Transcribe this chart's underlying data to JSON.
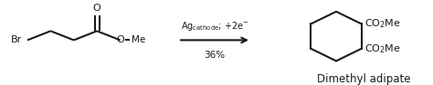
{
  "fig_width": 4.74,
  "fig_height": 0.94,
  "dpi": 100,
  "bg_color": "#ffffff",
  "arrow_above_text": "Ag$_{\\mathregular{cathode}}$; +2e$^{-}$",
  "arrow_below_text": "36%",
  "product_label": "Dimethyl adipate",
  "line_color": "#1a1a1a",
  "line_width": 1.5,
  "font_size_main": 8.0,
  "font_size_arrow": 7.5,
  "font_size_product": 8.5
}
